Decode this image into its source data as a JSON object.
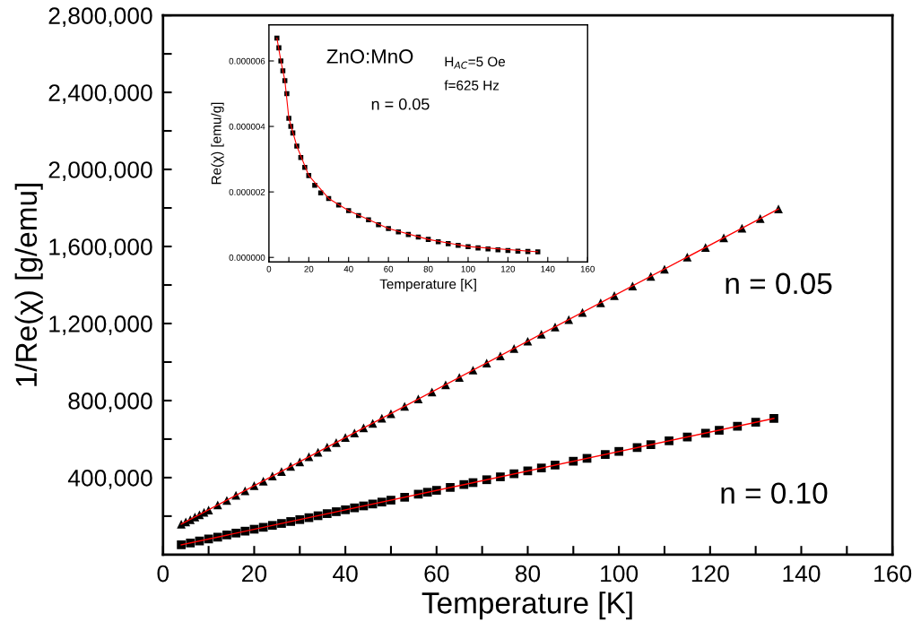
{
  "chart_data": [
    {
      "type": "scatter",
      "xlabel": "Temperature [K]",
      "ylabel": "1/Re(χ) [g/emu]",
      "xlim": [
        0,
        160
      ],
      "ylim": [
        0,
        2800000
      ],
      "xticks": [
        0,
        {
          "value": 10,
          "label": null
        },
        20,
        {
          "value": 30,
          "label": null
        },
        40,
        {
          "value": 50,
          "label": null
        },
        60,
        {
          "value": 70,
          "label": null
        },
        80,
        {
          "value": 90,
          "label": null
        },
        100,
        {
          "value": 110,
          "label": null
        },
        120,
        {
          "value": 130,
          "label": null
        },
        140,
        {
          "value": 150,
          "label": null
        },
        160
      ],
      "yticks": [
        {
          "value": 200000,
          "label": null
        },
        {
          "value": 400000,
          "label": "400,000"
        },
        {
          "value": 600000,
          "label": null
        },
        {
          "value": 800000,
          "label": "800,000"
        },
        {
          "value": 1000000,
          "label": null
        },
        {
          "value": 1200000,
          "label": "1,200,000"
        },
        {
          "value": 1400000,
          "label": null
        },
        {
          "value": 1600000,
          "label": "1,600,000"
        },
        {
          "value": 1800000,
          "label": null
        },
        {
          "value": 2000000,
          "label": "2,000,000"
        },
        {
          "value": 2200000,
          "label": null
        },
        {
          "value": 2400000,
          "label": "2,400,000"
        },
        {
          "value": 2600000,
          "label": null
        },
        {
          "value": 2800000,
          "label": "2,800,000"
        }
      ],
      "grid": false,
      "legend": false,
      "series": [
        {
          "name": "n = 0.05",
          "color": "#000000",
          "marker": "triangle",
          "x": [
            4,
            5,
            6,
            7,
            8,
            9,
            10,
            12,
            14,
            16,
            18,
            20,
            22,
            24,
            26,
            28,
            30,
            32,
            34,
            36,
            38,
            40,
            42,
            44,
            46,
            48,
            50,
            53,
            56,
            59,
            62,
            65,
            68,
            71,
            74,
            77,
            80,
            83,
            86,
            89,
            92,
            96,
            99,
            103,
            107,
            110,
            115,
            119,
            123,
            127,
            131,
            135
          ],
          "values": [
            158000,
            170000,
            182000,
            195000,
            207000,
            220000,
            232000,
            258000,
            282000,
            308000,
            332000,
            358000,
            382000,
            408000,
            432000,
            458000,
            482000,
            508000,
            532000,
            558000,
            582000,
            608000,
            632000,
            658000,
            682000,
            708000,
            732000,
            770000,
            808000,
            845000,
            882000,
            920000,
            958000,
            995000,
            1032000,
            1070000,
            1108000,
            1145000,
            1182000,
            1220000,
            1258000,
            1308000,
            1345000,
            1395000,
            1445000,
            1482000,
            1545000,
            1595000,
            1645000,
            1695000,
            1745000,
            1795000
          ]
        },
        {
          "name": "n = 0.10",
          "color": "#000000",
          "marker": "square",
          "x": [
            4,
            6,
            8,
            10,
            12,
            14,
            16,
            18,
            20,
            22,
            24,
            26,
            28,
            30,
            32,
            34,
            36,
            38,
            40,
            42,
            44,
            46,
            48,
            50,
            53,
            56,
            58,
            60,
            63,
            66,
            68,
            71,
            74,
            77,
            80,
            83,
            86,
            90,
            93,
            97,
            100,
            104,
            107,
            111,
            115,
            119,
            122,
            126,
            130,
            134
          ],
          "values": [
            51000,
            61000,
            71000,
            81000,
            91000,
            102000,
            112000,
            122000,
            132000,
            142000,
            152000,
            162000,
            172000,
            182000,
            192000,
            202000,
            213000,
            223000,
            233000,
            243000,
            253000,
            263000,
            273000,
            283000,
            298000,
            314000,
            324000,
            334000,
            349000,
            364000,
            374000,
            389000,
            404000,
            420000,
            435000,
            450000,
            465000,
            485000,
            500000,
            520000,
            536000,
            556000,
            571000,
            591000,
            611000,
            631000,
            646000,
            667000,
            687000,
            707000
          ]
        },
        {
          "type": "line",
          "color": "#ff0000",
          "x": [
            4,
            135
          ],
          "values": [
            158000,
            1795000
          ]
        },
        {
          "type": "line",
          "color": "#ff0000",
          "x": [
            4,
            134
          ],
          "values": [
            51000,
            707000
          ]
        }
      ]
    },
    {
      "type": "scatter",
      "xlabel": "Temperature [K]",
      "ylabel": "Re(χ) [emu/g]",
      "xlim": [
        0,
        160
      ],
      "ylim": [
        -1.4e-07,
        7.1e-06
      ],
      "xticks": [
        0,
        {
          "value": 10,
          "label": null
        },
        20,
        {
          "value": 30,
          "label": null
        },
        40,
        {
          "value": 50,
          "label": null
        },
        60,
        {
          "value": 70,
          "label": null
        },
        80,
        {
          "value": 90,
          "label": null
        },
        100,
        {
          "value": 110,
          "label": null
        },
        120,
        {
          "value": 130,
          "label": null
        },
        140,
        {
          "value": 150,
          "label": null
        },
        160
      ],
      "yticks": [
        {
          "value": 0,
          "label": "0.000000"
        },
        {
          "value": 2e-06,
          "label": "0.000002"
        },
        {
          "value": 4e-06,
          "label": "0.000004"
        },
        {
          "value": 6e-06,
          "label": "0.000006"
        }
      ],
      "grid": false,
      "legend": false,
      "annotations": [
        "ZnO:MnO",
        "H$_{AC}$=5 Oe",
        "f=625 Hz",
        "n = 0.05"
      ],
      "series": [
        {
          "color": "#000000",
          "marker": "square",
          "x": [
            4,
            5,
            6,
            7,
            8,
            9,
            10,
            11,
            12,
            14,
            16,
            18,
            20,
            23,
            26,
            30,
            35,
            40,
            45,
            50,
            55,
            60,
            65,
            70,
            75,
            80,
            85,
            90,
            95,
            100,
            105,
            110,
            115,
            120,
            125,
            130,
            135
          ],
          "values": [
            6.7e-06,
            6.4e-06,
            6e-06,
            5.7e-06,
            5.4e-06,
            5e-06,
            4.25e-06,
            4e-06,
            3.8e-06,
            3.4e-06,
            3.05e-06,
            2.75e-06,
            2.5e-06,
            2.2e-06,
            1.97e-06,
            1.8e-06,
            1.6e-06,
            1.43e-06,
            1.28e-06,
            1.15e-06,
            1e-06,
            8.8e-07,
            7.8e-07,
            7e-07,
            6.2e-07,
            5.5e-07,
            4.8e-07,
            4.2e-07,
            3.7e-07,
            3.3e-07,
            2.9e-07,
            2.6e-07,
            2.3e-07,
            2.1e-07,
            1.9e-07,
            1.8e-07,
            1.7e-07
          ]
        },
        {
          "type": "line",
          "color": "#ff0000",
          "x": [
            4,
            6,
            8,
            10,
            14,
            20,
            30,
            40,
            60,
            80,
            100,
            135
          ],
          "values": [
            6.7e-06,
            6e-06,
            5.4e-06,
            4.25e-06,
            3.4e-06,
            2.5e-06,
            1.8e-06,
            1.43e-06,
            8.8e-07,
            5.5e-07,
            3.3e-07,
            1.7e-07
          ]
        }
      ]
    }
  ]
}
